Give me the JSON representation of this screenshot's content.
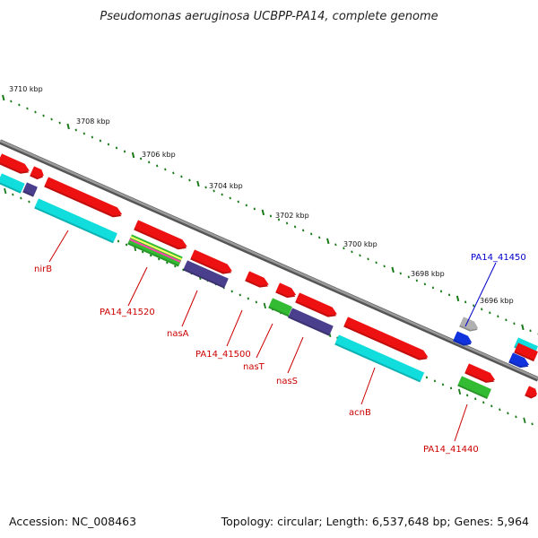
{
  "title": "Pseudomonas aeruginosa UCBPP-PA14, complete genome",
  "footer": {
    "accession": "Accession: NC_008463",
    "topology": "Topology: circular; Length: 6,537,648 bp; Genes: 5,964"
  },
  "colors": {
    "backbone": "#7a7a7a",
    "tick": "#1a7a1a",
    "label_red": "#cc0000",
    "label_blue": "#0000cc",
    "gene_red": "#ee1111",
    "gene_cyan": "#11dddd",
    "gene_navy": "#4a3f8c",
    "gene_green": "#33bb33",
    "gene_gray": "#b0b0b0",
    "gene_blue": "#1133dd"
  },
  "scale": {
    "unit": "kbp",
    "tick_labels": [
      "3710 kbp",
      "3708 kbp",
      "3706 kbp",
      "3704 kbp",
      "3702 kbp",
      "3700 kbp",
      "3698 kbp",
      "3696 kbp"
    ]
  },
  "genes": [
    {
      "name": "nirB",
      "color": "label_red",
      "icon": "gene-arrow"
    },
    {
      "name": "PA14_41520",
      "color": "label_red",
      "icon": "gene-arrow"
    },
    {
      "name": "nasA",
      "color": "label_red",
      "icon": "gene-arrow"
    },
    {
      "name": "PA14_41500",
      "color": "label_red",
      "icon": "gene-arrow"
    },
    {
      "name": "nasT",
      "color": "label_red",
      "icon": "gene-arrow"
    },
    {
      "name": "nasS",
      "color": "label_red",
      "icon": "gene-arrow"
    },
    {
      "name": "acnB",
      "color": "label_red",
      "icon": "gene-arrow"
    },
    {
      "name": "PA14_41440",
      "color": "label_red",
      "icon": "gene-arrow"
    },
    {
      "name": "PA14_41450",
      "color": "label_blue",
      "icon": "gene-arrow"
    }
  ]
}
